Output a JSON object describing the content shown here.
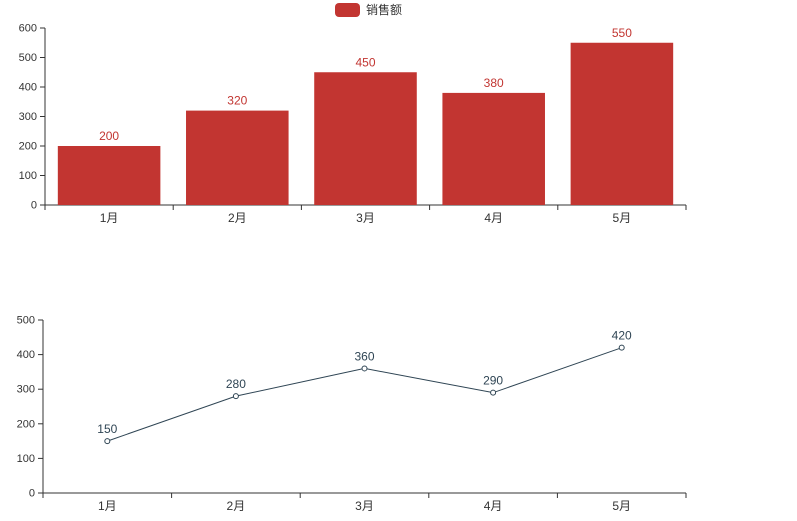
{
  "legend": {
    "label": "销售额"
  },
  "colors": {
    "bar": "#c23531",
    "bar_value_label": "#c23531",
    "line": "#2f4554",
    "line_value_label": "#2f4554",
    "marker_fill": "#ffffff",
    "axis_line": "#333333",
    "tick_text": "#333333",
    "background": "#ffffff"
  },
  "chart_data": [
    {
      "type": "bar",
      "title": "",
      "legend": [
        "销售额"
      ],
      "legend_position": "top-center",
      "categories": [
        "1月",
        "2月",
        "3月",
        "4月",
        "5月"
      ],
      "series": [
        {
          "name": "销售额",
          "values": [
            200,
            320,
            450,
            380,
            550
          ]
        }
      ],
      "value_labels": [
        "200",
        "320",
        "450",
        "380",
        "550"
      ],
      "ylim": [
        0,
        600
      ],
      "yticks": [
        0,
        100,
        200,
        300,
        400,
        500,
        600
      ],
      "grid": false
    },
    {
      "type": "line",
      "title": "",
      "categories": [
        "1月",
        "2月",
        "3月",
        "4月",
        "5月"
      ],
      "series": [
        {
          "values": [
            150,
            280,
            360,
            290,
            420
          ]
        }
      ],
      "value_labels": [
        "150",
        "280",
        "360",
        "290",
        "420"
      ],
      "ylim": [
        0,
        500
      ],
      "yticks": [
        0,
        100,
        200,
        300,
        400,
        500
      ],
      "grid": false,
      "marker": "hollow-circle"
    }
  ]
}
